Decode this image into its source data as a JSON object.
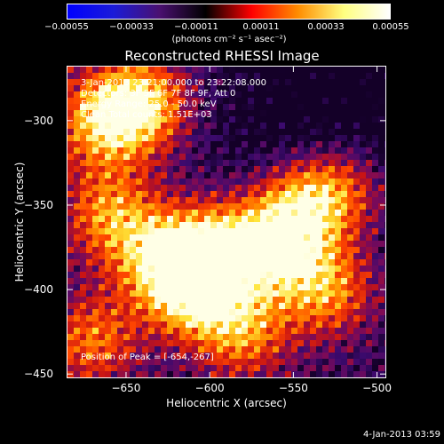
{
  "chart_data": {
    "type": "heatmap",
    "title": "Reconstructed RHESSI Image",
    "xlabel": "Heliocentric X (arcsec)",
    "ylabel": "Heliocentric Y (arcsec)",
    "xlim": [
      -685,
      -495
    ],
    "ylim": [
      -452,
      -268
    ],
    "x_ticks": [
      {
        "value": -650,
        "label": "−650"
      },
      {
        "value": -600,
        "label": "−600"
      },
      {
        "value": -550,
        "label": "−550"
      },
      {
        "value": -500,
        "label": "−500"
      }
    ],
    "y_ticks": [
      {
        "value": -300,
        "label": "−300"
      },
      {
        "value": -350,
        "label": "−350"
      },
      {
        "value": -400,
        "label": "−400"
      },
      {
        "value": -450,
        "label": "−450"
      }
    ],
    "colorbar": {
      "min": -0.00055,
      "max": 0.00055,
      "ticks": [
        {
          "value": -0.00055,
          "label": "−0.00055"
        },
        {
          "value": -0.00033,
          "label": "−0.00033"
        },
        {
          "value": -0.00011,
          "label": "−0.00011"
        },
        {
          "value": 0.00011,
          "label": "0.00011"
        },
        {
          "value": 0.00033,
          "label": "0.00033"
        },
        {
          "value": 0.00055,
          "label": "0.00055"
        }
      ],
      "units": "(photons cm⁻² s⁻¹ asec⁻²)",
      "colors": [
        "#0000ff",
        "#1b1bd8",
        "#4a1070",
        "#000000",
        "#ff0000",
        "#ff8c00",
        "#ffff80",
        "#ffffff"
      ]
    },
    "annotations": [
      "3-Jan-2013 23:21:00.000 to 23:22:08.000",
      "Detectors: 3F 5F 6F 7F 8F 9F, Att 0",
      "Energy Range: 25.0 - 50.0 keV",
      "Clean     Total counts: 1.51E+03"
    ],
    "peak_label": "Position of Peak = [-654,-267]",
    "peak": {
      "x": -654,
      "y": -267
    },
    "bright_regions": [
      {
        "x": -640,
        "y": -290,
        "level": 0.9
      },
      {
        "x": -665,
        "y": -300,
        "level": 0.8
      },
      {
        "x": -610,
        "y": -400,
        "level": 1.0
      },
      {
        "x": -595,
        "y": -375,
        "level": 0.85
      },
      {
        "x": -630,
        "y": -380,
        "level": 0.75
      },
      {
        "x": -660,
        "y": -355,
        "level": 0.7
      },
      {
        "x": -545,
        "y": -350,
        "level": 0.8
      },
      {
        "x": -560,
        "y": -375,
        "level": 0.85
      },
      {
        "x": -530,
        "y": -400,
        "level": 0.75
      },
      {
        "x": -580,
        "y": -425,
        "level": 0.7
      },
      {
        "x": -520,
        "y": -340,
        "level": 0.6
      },
      {
        "x": -670,
        "y": -430,
        "level": 0.65
      }
    ]
  },
  "footer": {
    "timestamp": "4-Jan-2013 03:59"
  }
}
